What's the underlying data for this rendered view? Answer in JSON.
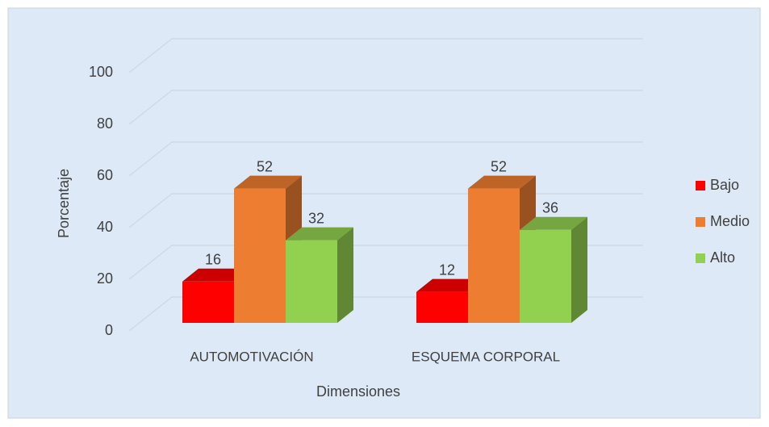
{
  "chart_data": {
    "type": "bar3d",
    "categories": [
      "AUTOMOTIVACIÓN",
      "ESQUEMA CORPORAL"
    ],
    "series": [
      {
        "name": "Bajo",
        "color": "#ff0000",
        "values": [
          16,
          12
        ]
      },
      {
        "name": "Medio",
        "color": "#ed7d31",
        "values": [
          52,
          52
        ]
      },
      {
        "name": "Alto",
        "color": "#92d050",
        "values": [
          32,
          36
        ]
      }
    ],
    "xlabel": "Dimensiones",
    "ylabel": "Porcentaje",
    "ylim": [
      0,
      100
    ],
    "yticks": [
      0,
      20,
      40,
      60,
      80,
      100
    ],
    "grid": true,
    "legend": "right"
  }
}
